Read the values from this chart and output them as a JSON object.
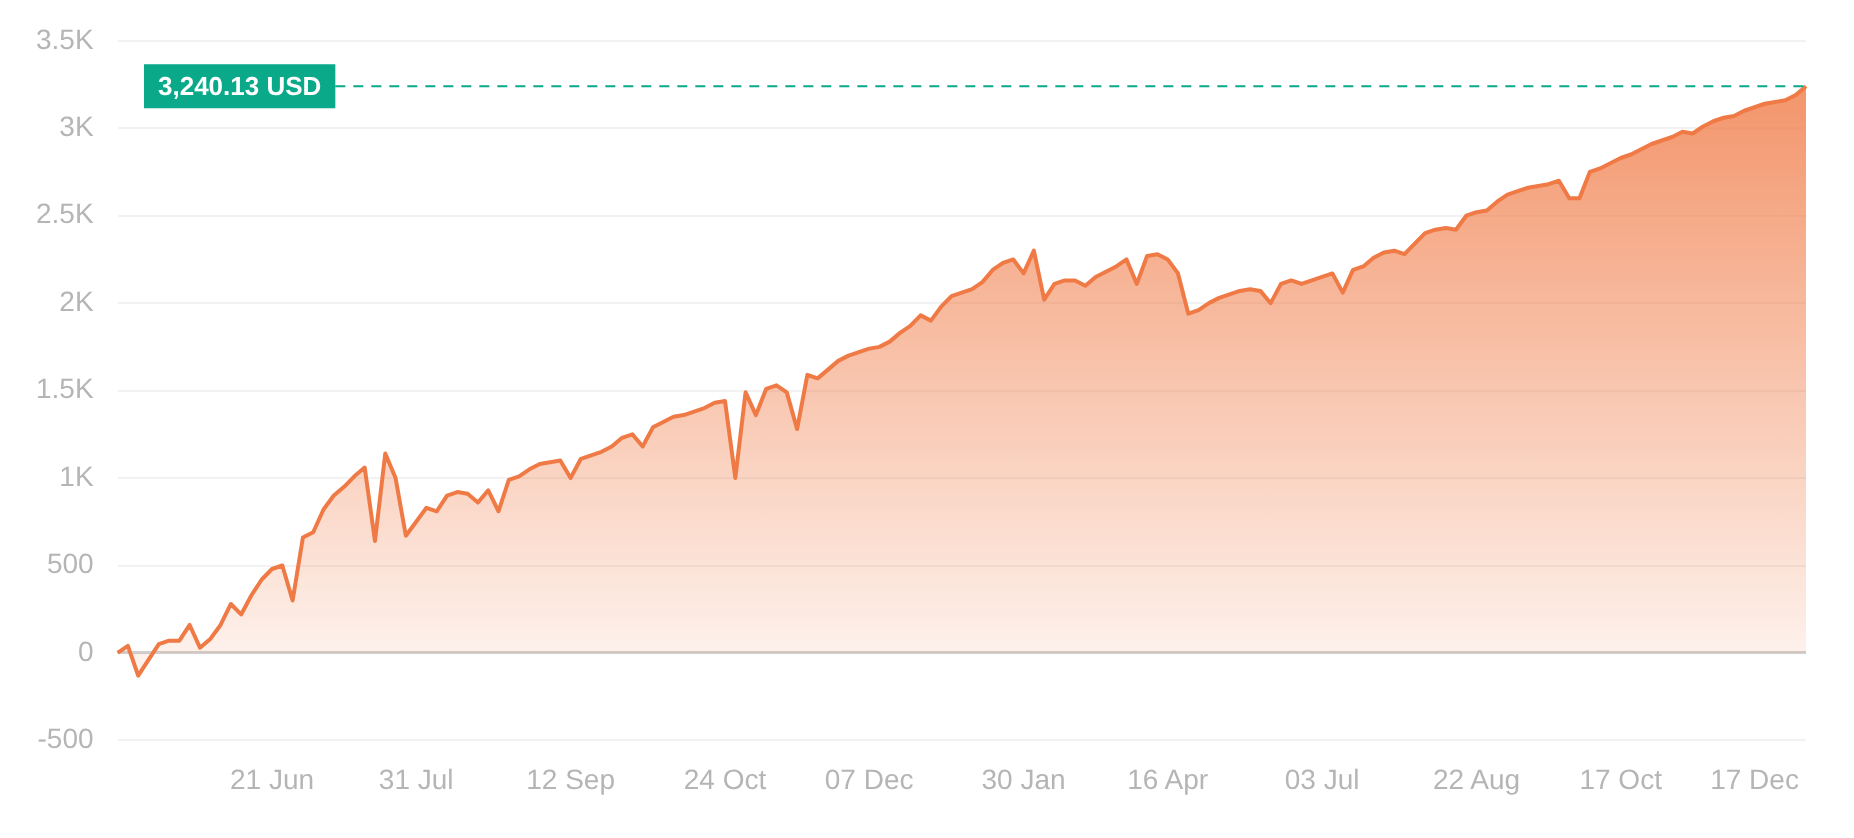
{
  "chart_data": {
    "type": "area",
    "categories": [
      null,
      null,
      null,
      null,
      null,
      null,
      null,
      null,
      null,
      null,
      null,
      null,
      null,
      null,
      null,
      "21 Jun",
      null,
      null,
      null,
      null,
      null,
      null,
      null,
      null,
      null,
      null,
      null,
      null,
      null,
      "31 Jul",
      null,
      null,
      null,
      null,
      null,
      null,
      null,
      null,
      null,
      null,
      null,
      null,
      null,
      null,
      "12 Sep",
      null,
      null,
      null,
      null,
      null,
      null,
      null,
      null,
      null,
      null,
      null,
      null,
      null,
      null,
      "24 Oct",
      null,
      null,
      null,
      null,
      null,
      null,
      null,
      null,
      null,
      null,
      null,
      null,
      null,
      "07 Dec",
      null,
      null,
      null,
      null,
      null,
      null,
      null,
      null,
      null,
      null,
      null,
      null,
      null,
      null,
      "30 Jan",
      null,
      null,
      null,
      null,
      null,
      null,
      null,
      null,
      null,
      null,
      null,
      null,
      null,
      "16 Apr",
      null,
      null,
      null,
      null,
      null,
      null,
      null,
      null,
      null,
      null,
      null,
      null,
      null,
      null,
      "03 Jul",
      null,
      null,
      null,
      null,
      null,
      null,
      null,
      null,
      null,
      null,
      null,
      null,
      null,
      null,
      "22 Aug",
      null,
      null,
      null,
      null,
      null,
      null,
      null,
      null,
      null,
      null,
      null,
      null,
      null,
      "17 Oct",
      null,
      null,
      null,
      null,
      null,
      null,
      null,
      null,
      null,
      null,
      null,
      null,
      "17 Dec",
      null,
      null,
      null,
      null,
      null
    ],
    "series": [
      {
        "color": "#f07a45",
        "values": [
          0,
          40,
          -130,
          -40,
          50,
          70,
          70,
          160,
          30,
          80,
          160,
          280,
          220,
          330,
          420,
          480,
          500,
          300,
          660,
          690,
          820,
          900,
          950,
          1010,
          1060,
          640,
          1140,
          1000,
          670,
          750,
          830,
          810,
          900,
          920,
          910,
          860,
          930,
          810,
          990,
          1010,
          1050,
          1080,
          1090,
          1100,
          1000,
          1110,
          1130,
          1150,
          1180,
          1230,
          1250,
          1180,
          1290,
          1320,
          1350,
          1360,
          1380,
          1400,
          1430,
          1440,
          1000,
          1490,
          1360,
          1510,
          1530,
          1490,
          1280,
          1590,
          1570,
          1620,
          1670,
          1700,
          1720,
          1740,
          1750,
          1780,
          1830,
          1870,
          1930,
          1900,
          1980,
          2040,
          2060,
          2080,
          2120,
          2190,
          2230,
          2250,
          2170,
          2300,
          2020,
          2110,
          2130,
          2130,
          2100,
          2150,
          2180,
          2210,
          2250,
          2110,
          2270,
          2280,
          2250,
          2170,
          1940,
          1960,
          2000,
          2030,
          2050,
          2070,
          2080,
          2070,
          2000,
          2110,
          2130,
          2110,
          2130,
          2150,
          2170,
          2060,
          2190,
          2210,
          2260,
          2290,
          2300,
          2280,
          2340,
          2400,
          2420,
          2430,
          2420,
          2500,
          2520,
          2530,
          2580,
          2620,
          2640,
          2660,
          2670,
          2680,
          2700,
          2600,
          2600,
          2750,
          2770,
          2800,
          2830,
          2850,
          2880,
          2910,
          2930,
          2950,
          2980,
          2970,
          3010,
          3040,
          3060,
          3070,
          3100,
          3120,
          3140,
          3150,
          3160,
          3190,
          3240
        ]
      }
    ],
    "ylim": [
      -500,
      3500
    ],
    "yticks": [
      {
        "value": -500,
        "label": "-500"
      },
      {
        "value": 0,
        "label": "0"
      },
      {
        "value": 500,
        "label": "500"
      },
      {
        "value": 1000,
        "label": "1K"
      },
      {
        "value": 1500,
        "label": "1.5K"
      },
      {
        "value": 2000,
        "label": "2K"
      },
      {
        "value": 2500,
        "label": "2.5K"
      },
      {
        "value": 3000,
        "label": "3K"
      },
      {
        "value": 3500,
        "label": "3.5K"
      }
    ],
    "grid": "y",
    "legend": false,
    "marker": "none",
    "line_style": "solid",
    "ref_lines": [
      {
        "axis": "y",
        "value": 3240.13,
        "label": "3,240.13 USD",
        "color": "#0aa98a",
        "line_style": "dashed"
      }
    ]
  }
}
